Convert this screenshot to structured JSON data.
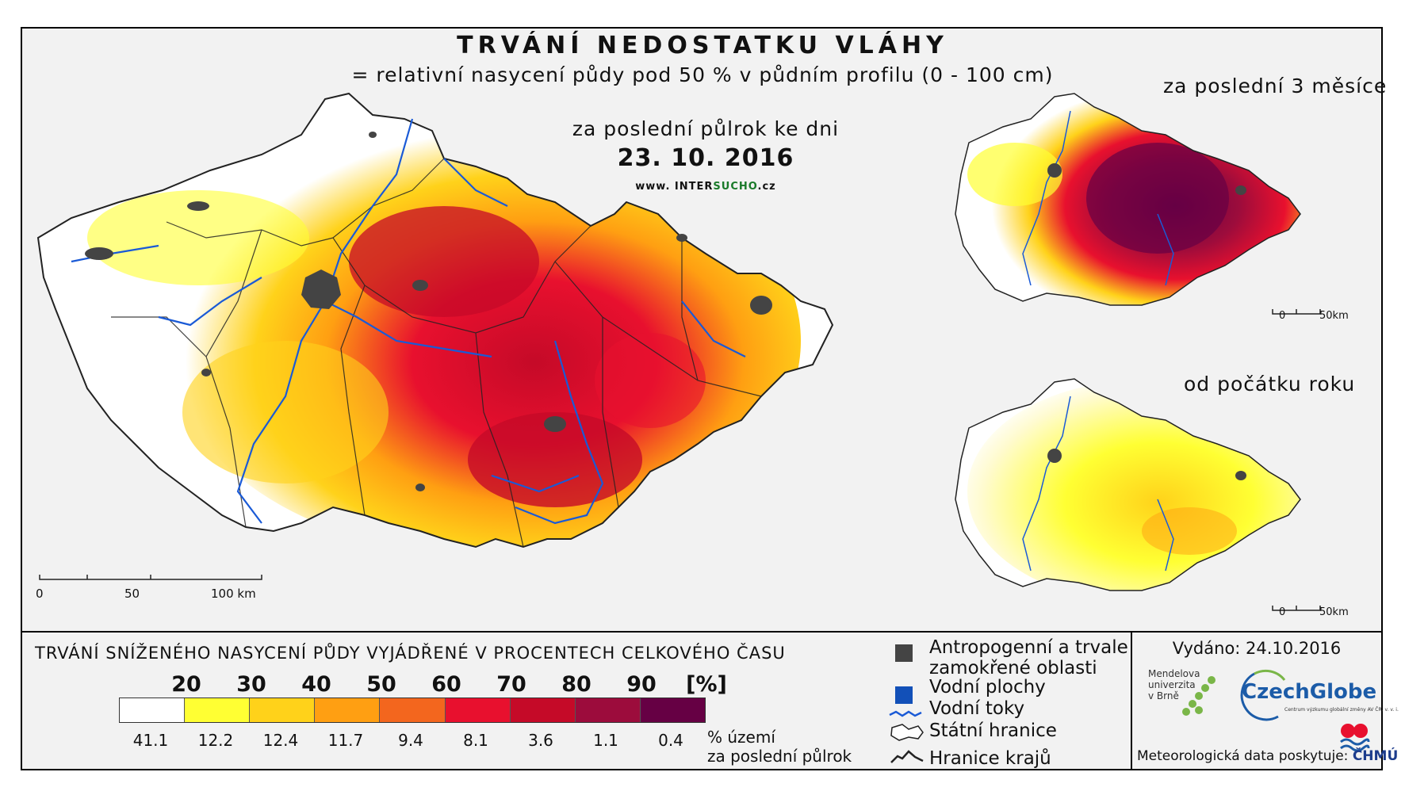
{
  "title": "TRVÁNÍ NEDOSTATKU VLÁHY",
  "subtitle": "= relativní nasycení půdy pod 50 % v půdním profilu (0 - 100 cm)",
  "period_label": "za poslední půlrok ke dni",
  "date": "23. 10. 2016",
  "website": {
    "prefix": "www. INTER",
    "highlight": "SUCHO",
    "suffix": ".cz"
  },
  "main_scale": {
    "labels": [
      "0",
      "50",
      "100 km"
    ]
  },
  "insets": [
    {
      "title": "za poslední 3 měsíce",
      "scale": [
        "0",
        "50km"
      ]
    },
    {
      "title": "od počátku roku",
      "scale": [
        "0",
        "50km"
      ]
    }
  ],
  "legend": {
    "title": "TRVÁNÍ SNÍŽENÉHO NASYCENÍ PŮDY VYJÁDŘENÉ V PROCENTECH CELKOVÉHO ČASU",
    "class_breaks": [
      "20",
      "30",
      "40",
      "50",
      "60",
      "70",
      "80",
      "90",
      "[%]"
    ],
    "colors": [
      "#ffffff",
      "#ffff33",
      "#ffd21a",
      "#ff9f12",
      "#f3661e",
      "#e8102e",
      "#c50a28",
      "#9c0c3c",
      "#660044"
    ],
    "area_percent": [
      "41.1",
      "12.2",
      "12.4",
      "11.7",
      "9.4",
      "8.1",
      "3.6",
      "1.1",
      "0.4"
    ],
    "area_note_line1": "% území",
    "area_note_line2": "za poslední půlrok"
  },
  "symbols": {
    "anthropogenic_line1": "Antropogenní a trvale",
    "anthropogenic_line2": "zamokřené oblasti",
    "water_bodies": "Vodní plochy",
    "rivers": "Vodní toky",
    "state_border": "Státní hranice",
    "regional_border": "Hranice krajů"
  },
  "colors": {
    "anthropogenic": "#444444",
    "water_bodies": "#1250b8",
    "rivers": "#1a5ad6"
  },
  "issued": "Vydáno: 24.10.2016",
  "logos": {
    "mendel_line1": "Mendelova",
    "mendel_line2": "univerzita",
    "mendel_line3": "v Brně",
    "czechglobe": "CzechGlobe",
    "czechglobe_sub": "Centrum výzkumu globální změny AV ČR, v. v. i."
  },
  "met_source": {
    "prefix": "Meteorologická data poskytuje:",
    "org": "ČHMÚ"
  }
}
